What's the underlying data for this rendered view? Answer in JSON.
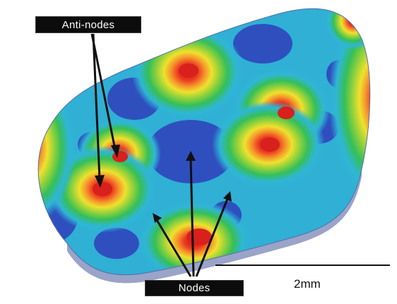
{
  "labels": {
    "antinodes": "Anti-nodes",
    "nodes": "Nodes"
  },
  "scale_bar": {
    "text": "2mm"
  },
  "colors": {
    "background": "#ffffff",
    "node_blue": "#2f4fbf",
    "mid_cyan": "#31b7d8",
    "mid_green": "#38c154",
    "mid_yellow": "#e8e02a",
    "mid_orange": "#f49a2e",
    "antinode_red": "#d8201c",
    "label_bg": "#0c0c0c",
    "arrow": "#111111"
  }
}
